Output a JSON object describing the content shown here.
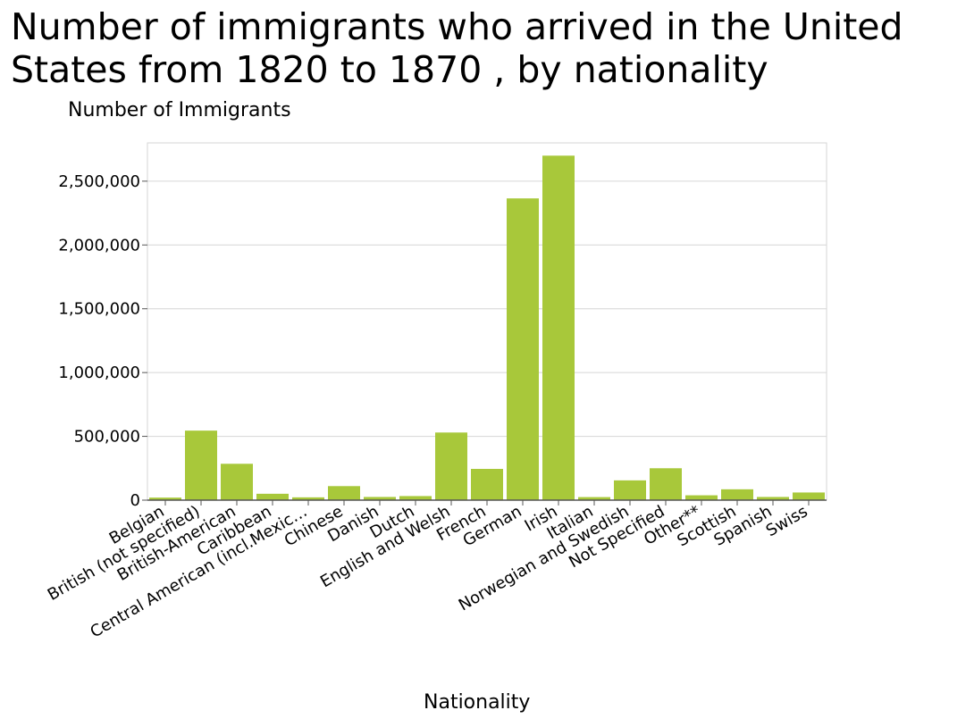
{
  "chart_data": {
    "type": "bar",
    "title": "Number of immigrants who arrived in the United States from 1820 to 1870 , by nationality",
    "xlabel": "Nationality",
    "ylabel": "Number of Immigrants",
    "ylim": [
      0,
      2800000
    ],
    "yticks": [
      0,
      500000,
      1000000,
      1500000,
      2000000,
      2500000
    ],
    "ytick_labels": [
      "0",
      "500,000",
      "1,000,000",
      "1,500,000",
      "2,000,000",
      "2,500,000"
    ],
    "grid": true,
    "bar_color": "#a8c83a",
    "categories": [
      "Belgian",
      "British (not specified)",
      "British-American",
      "Caribbean",
      "Central American (incl.Mexic…",
      "Chinese",
      "Danish",
      "Dutch",
      "English and Welsh",
      "French",
      "German",
      "Irish",
      "Italian",
      "Norwegian and Swedish",
      "Not Specified",
      "Other**",
      "Scottish",
      "Spanish",
      "Swiss"
    ],
    "values": [
      20000,
      545000,
      285000,
      50000,
      22000,
      110000,
      25000,
      32000,
      530000,
      245000,
      2365000,
      2700000,
      24000,
      155000,
      250000,
      38000,
      85000,
      25000,
      60000
    ]
  }
}
